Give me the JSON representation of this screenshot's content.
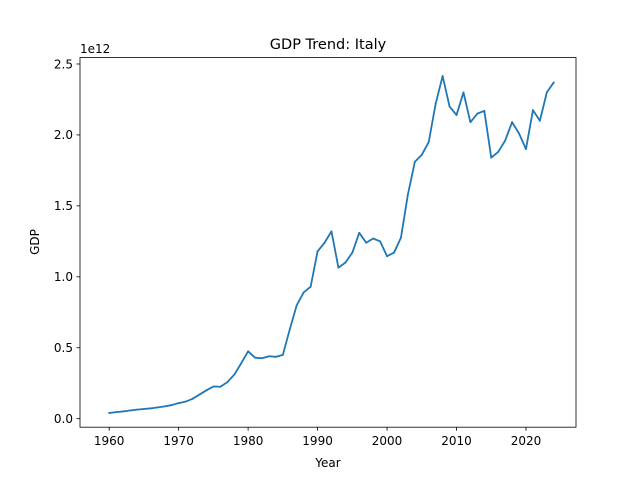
{
  "chart_data": {
    "type": "line",
    "title": "GDP Trend: Italy",
    "xlabel": "Year",
    "ylabel": "GDP",
    "y_offset_label": "1e12",
    "y_scale": 1000000000000.0,
    "xlim": [
      1955.8,
      2027.2
    ],
    "ylim": [
      -0.06,
      2.545
    ],
    "xticks": [
      1960,
      1970,
      1980,
      1990,
      2000,
      2010,
      2020
    ],
    "yticks": [
      0.0,
      0.5,
      1.0,
      1.5,
      2.0,
      2.5
    ],
    "ytick_labels": [
      "0.0",
      "0.5",
      "1.0",
      "1.5",
      "2.0",
      "2.5"
    ],
    "grid": false,
    "line_color": "#1f77b4",
    "series": [
      {
        "name": "Italy",
        "x": [
          1960,
          1961,
          1962,
          1963,
          1964,
          1965,
          1966,
          1967,
          1968,
          1969,
          1970,
          1971,
          1972,
          1973,
          1974,
          1975,
          1976,
          1977,
          1978,
          1979,
          1980,
          1981,
          1982,
          1983,
          1984,
          1985,
          1986,
          1987,
          1988,
          1989,
          1990,
          1991,
          1992,
          1993,
          1994,
          1995,
          1996,
          1997,
          1998,
          1999,
          2000,
          2001,
          2002,
          2003,
          2004,
          2005,
          2006,
          2007,
          2008,
          2009,
          2010,
          2011,
          2012,
          2013,
          2014,
          2015,
          2016,
          2017,
          2018,
          2019,
          2020,
          2021,
          2022,
          2023,
          2024
        ],
        "values": [
          0.04,
          0.046,
          0.051,
          0.058,
          0.064,
          0.068,
          0.073,
          0.08,
          0.087,
          0.096,
          0.11,
          0.12,
          0.14,
          0.17,
          0.2,
          0.227,
          0.225,
          0.257,
          0.31,
          0.39,
          0.475,
          0.43,
          0.426,
          0.44,
          0.436,
          0.45,
          0.63,
          0.8,
          0.89,
          0.93,
          1.18,
          1.24,
          1.32,
          1.065,
          1.1,
          1.17,
          1.31,
          1.24,
          1.27,
          1.25,
          1.145,
          1.17,
          1.275,
          1.58,
          1.81,
          1.86,
          1.95,
          2.22,
          2.415,
          2.2,
          2.14,
          2.3,
          2.09,
          2.15,
          2.17,
          1.84,
          1.88,
          1.96,
          2.09,
          2.01,
          1.9,
          2.175,
          2.1,
          2.3,
          2.37
        ]
      }
    ]
  }
}
